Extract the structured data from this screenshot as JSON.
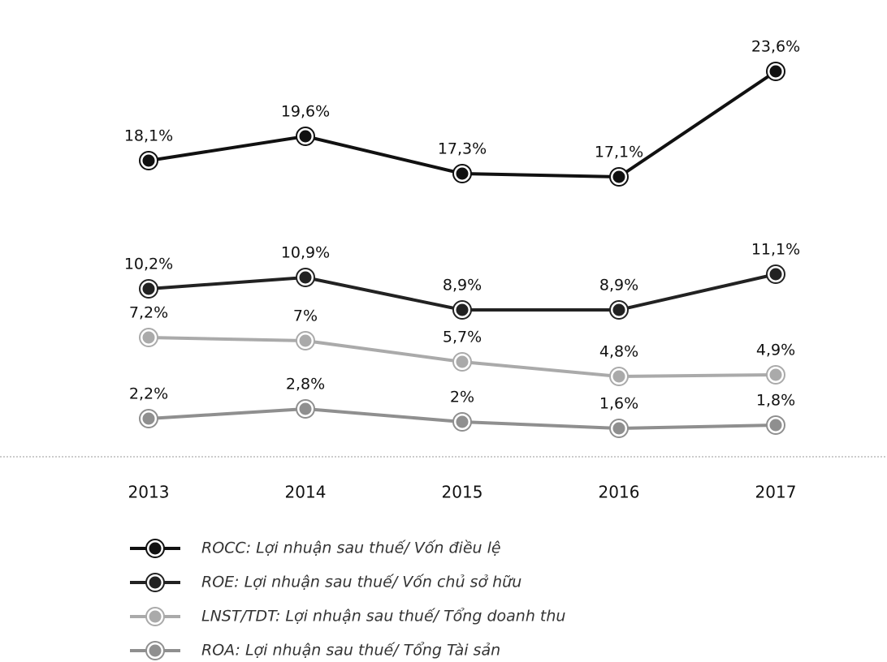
{
  "chart_data": {
    "type": "line",
    "categories": [
      "2013",
      "2014",
      "2015",
      "2016",
      "2017"
    ],
    "ylim": [
      0,
      25
    ],
    "series": [
      {
        "name": "ROCC: Lợi nhuận sau thuế/ Vốn điều lệ",
        "color": "#111111",
        "values": [
          18.1,
          19.6,
          17.3,
          17.1,
          23.6
        ],
        "value_labels": [
          "18,1%",
          "19,6%",
          "17,3%",
          "17,1%",
          "23,6%"
        ]
      },
      {
        "name": "ROE: Lợi nhuận sau thuế/ Vốn chủ sở hữu",
        "color": "#222222",
        "values": [
          10.2,
          10.9,
          8.9,
          8.9,
          11.1
        ],
        "value_labels": [
          "10,2%",
          "10,9%",
          "8,9%",
          "8,9%",
          "11,1%"
        ]
      },
      {
        "name": "LNST/TDT: Lợi nhuận sau thuế/ Tổng doanh thu",
        "color": "#aaaaaa",
        "values": [
          7.2,
          7,
          5.7,
          4.8,
          4.9
        ],
        "value_labels": [
          "7,2%",
          "7%",
          "5,7%",
          "4,8%",
          "4,9%"
        ]
      },
      {
        "name": "ROA: Lợi nhuận sau thuế/ Tổng Tài sản",
        "color": "#8f8f8f",
        "values": [
          2.2,
          2.8,
          2,
          1.6,
          1.8
        ],
        "value_labels": [
          "2,2%",
          "2,8%",
          "2%",
          "1,6%",
          "1,8%"
        ]
      }
    ]
  }
}
